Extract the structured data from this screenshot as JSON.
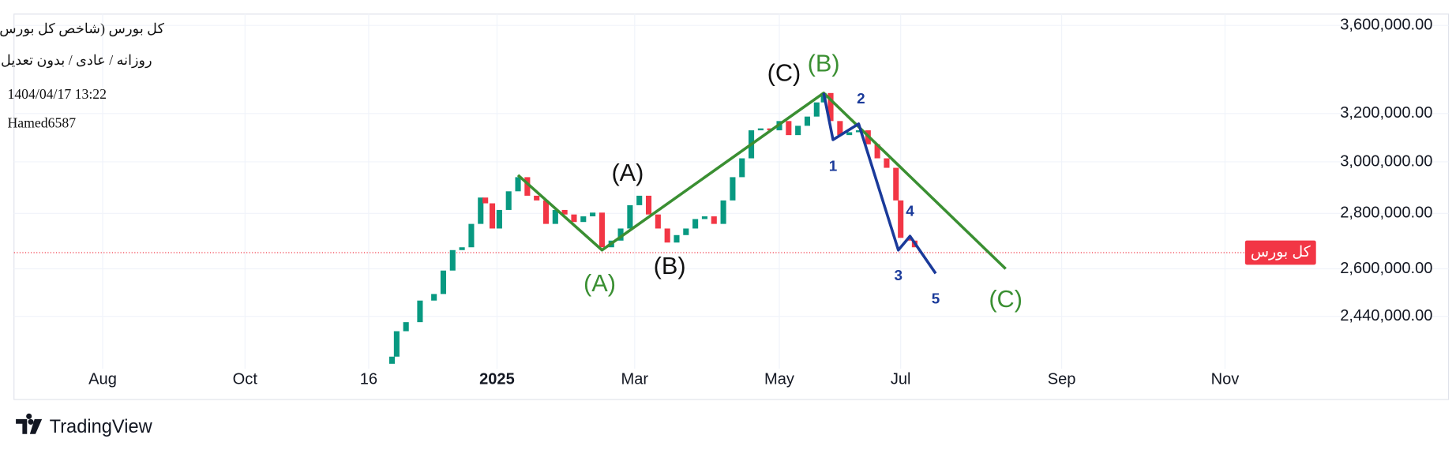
{
  "header": {
    "title": "کل بورس (شاخص کل بورس)",
    "subtitle": "روزانه / عادی / بدون تعدیل",
    "timestamp": "1404/04/17 13:22",
    "author": "Hamed6587"
  },
  "footer": {
    "brand": "TradingView"
  },
  "chart_data": {
    "type": "candlestick",
    "log_scale": true,
    "grid": true,
    "up_color": "#089981",
    "down_color": "#f23645",
    "x": [
      -45,
      -43,
      -39,
      -33,
      -27,
      -23,
      -19,
      -15,
      -11,
      -7,
      -5,
      -2,
      1,
      5,
      9,
      13,
      17,
      21,
      25,
      29,
      33,
      37,
      41,
      45,
      49,
      53,
      57,
      61,
      65,
      69,
      73,
      77,
      81,
      85,
      89,
      93,
      97,
      101,
      105,
      109,
      113,
      117,
      121,
      125,
      129,
      133,
      137,
      140,
      143,
      147,
      151,
      155,
      159,
      163,
      167,
      171,
      173,
      177,
      179
    ],
    "open": [
      2290000,
      2312000,
      2392000,
      2421000,
      2492000,
      2514000,
      2594000,
      2666000,
      2676000,
      2761000,
      2860000,
      2838000,
      2744000,
      2813000,
      2884000,
      2939000,
      2867000,
      2849000,
      2761000,
      2813000,
      2796000,
      2768000,
      2789000,
      2803000,
      2676000,
      2700000,
      2744000,
      2831000,
      2867000,
      2796000,
      2744000,
      2693000,
      2720000,
      2744000,
      2779000,
      2789000,
      2761000,
      2849000,
      2939000,
      3014000,
      3129000,
      3137000,
      3129000,
      3168000,
      3109000,
      3148000,
      3187000,
      3248000,
      3289000,
      3168000,
      3109000,
      3121000,
      3129000,
      3071000,
      3014000,
      2976000,
      2849000,
      2710000,
      2700000
    ],
    "close": [
      2312000,
      2392000,
      2421000,
      2492000,
      2514000,
      2594000,
      2666000,
      2676000,
      2761000,
      2860000,
      2838000,
      2744000,
      2813000,
      2884000,
      2939000,
      2867000,
      2849000,
      2761000,
      2813000,
      2796000,
      2768000,
      2789000,
      2803000,
      2676000,
      2700000,
      2744000,
      2831000,
      2867000,
      2796000,
      2744000,
      2693000,
      2720000,
      2744000,
      2779000,
      2789000,
      2761000,
      2849000,
      2939000,
      3014000,
      3129000,
      3137000,
      3129000,
      3168000,
      3109000,
      3148000,
      3187000,
      3248000,
      3289000,
      3168000,
      3109000,
      3121000,
      3129000,
      3071000,
      3014000,
      2976000,
      2849000,
      2710000,
      2700000,
      2676000
    ],
    "xlim": [
      -207,
      351
    ],
    "xticks": [
      {
        "value": -169,
        "label": "Aug"
      },
      {
        "value": -108,
        "label": "Oct"
      },
      {
        "value": -55,
        "label": "16"
      },
      {
        "value": 0,
        "label": "2025"
      },
      {
        "value": 59,
        "label": "Mar"
      },
      {
        "value": 121,
        "label": "May"
      },
      {
        "value": 173,
        "label": "Jul"
      },
      {
        "value": 242,
        "label": "Sep"
      },
      {
        "value": 312,
        "label": "Nov"
      }
    ],
    "ylim": [
      2275000,
      3655000
    ],
    "yticks": [
      {
        "value": 2440000,
        "label": "2,440,000.00"
      },
      {
        "value": 2600000,
        "label": "2,600,000.00"
      },
      {
        "value": 2800000,
        "label": "2,800,000.00"
      },
      {
        "value": 3000000,
        "label": "3,000,000.00"
      },
      {
        "value": 3200000,
        "label": "3,200,000.00"
      },
      {
        "value": 3600000,
        "label": "3,600,000.00"
      }
    ],
    "price_line": {
      "label": "کل بورس",
      "value": 2657000,
      "color": "#f23645"
    },
    "waves": [
      {
        "color": "#3a8f32",
        "x": [
          9,
          45,
          140,
          218
        ],
        "values": [
          2947000,
          2666000,
          3289000,
          2600000
        ]
      },
      {
        "color": "#1a3a9a",
        "x": [
          140,
          144,
          155,
          172,
          177,
          188
        ],
        "values": [
          3289000,
          3090000,
          3156000,
          2666000,
          2716000,
          2584000
        ]
      }
    ],
    "annotations": [
      {
        "text": "(A)",
        "x": 56,
        "y": 2950000,
        "color": "#111111"
      },
      {
        "text": "(B)",
        "x": 74,
        "y": 2604000,
        "color": "#111111"
      },
      {
        "text": "(C)",
        "x": 123,
        "y": 3372000,
        "color": "#111111"
      },
      {
        "text": "(B)",
        "x": 140,
        "y": 3415000,
        "color": "#3a8f32"
      },
      {
        "text": "(A)",
        "x": 44,
        "y": 2545000,
        "color": "#3a8f32"
      },
      {
        "text": "(C)",
        "x": 218,
        "y": 2492000,
        "color": "#3a8f32"
      },
      {
        "text": "1",
        "x": 144,
        "y": 2980000,
        "color": "#1a3a9a"
      },
      {
        "text": "2",
        "x": 156,
        "y": 3260000,
        "color": "#1a3a9a"
      },
      {
        "text": "3",
        "x": 172,
        "y": 2574000,
        "color": "#1a3a9a"
      },
      {
        "text": "4",
        "x": 177,
        "y": 2806000,
        "color": "#1a3a9a"
      },
      {
        "text": "5",
        "x": 188,
        "y": 2495000,
        "color": "#1a3a9a"
      }
    ]
  }
}
